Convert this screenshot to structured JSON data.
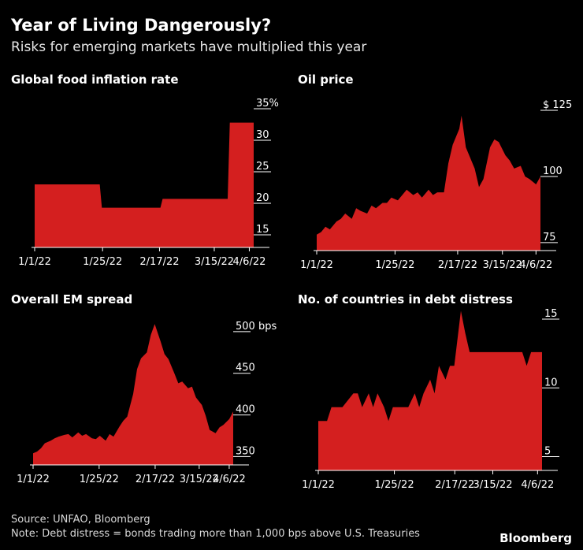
{
  "header": {
    "title": "Year of Living Dangerously?",
    "subtitle": "Risks for emerging markets have multiplied this year"
  },
  "footer": {
    "source": "Source: UNFAO, Bloomberg",
    "note": "Note: Debt distress = bonds trading more than 1,000 bps above U.S. Treasuries",
    "brand": "Bloomberg"
  },
  "colors": {
    "fill": "#d41f1f",
    "background": "#000000",
    "axis": "#ffffff"
  },
  "chart_data": [
    {
      "type": "area",
      "title": "Global food inflation rate",
      "xticks": [
        "1/1/22",
        "1/25/22",
        "2/17/22",
        "3/15/22",
        "4/6/22"
      ],
      "yticks": [
        "15",
        "20",
        "25",
        "30",
        "35%"
      ],
      "ylim": [
        13,
        35
      ],
      "x": [
        "2022-01-01",
        "2022-01-31",
        "2022-02-01",
        "2022-02-28",
        "2022-03-01",
        "2022-03-31",
        "2022-04-01",
        "2022-04-12"
      ],
      "y": [
        23.0,
        23.0,
        19.3,
        19.3,
        20.7,
        20.7,
        32.8,
        32.8
      ]
    },
    {
      "type": "area",
      "title": "Oil price",
      "xticks": [
        "1/1/22",
        "1/25/22",
        "2/17/22",
        "3/15/22",
        "4/6/22"
      ],
      "yticks": [
        "75",
        "100",
        "$ 125"
      ],
      "ylim": [
        72,
        125
      ],
      "x": [
        "2022-01-01",
        "2022-01-03",
        "2022-01-05",
        "2022-01-07",
        "2022-01-10",
        "2022-01-12",
        "2022-01-14",
        "2022-01-17",
        "2022-01-19",
        "2022-01-21",
        "2022-01-24",
        "2022-01-26",
        "2022-01-28",
        "2022-01-31",
        "2022-02-02",
        "2022-02-04",
        "2022-02-07",
        "2022-02-09",
        "2022-02-11",
        "2022-02-14",
        "2022-02-16",
        "2022-02-18",
        "2022-02-21",
        "2022-02-23",
        "2022-02-25",
        "2022-02-28",
        "2022-03-02",
        "2022-03-04",
        "2022-03-07",
        "2022-03-08",
        "2022-03-10",
        "2022-03-14",
        "2022-03-16",
        "2022-03-18",
        "2022-03-21",
        "2022-03-23",
        "2022-03-25",
        "2022-03-28",
        "2022-03-30",
        "2022-04-01",
        "2022-04-04",
        "2022-04-06",
        "2022-04-08",
        "2022-04-11",
        "2022-04-13"
      ],
      "y": [
        78,
        79,
        81,
        80,
        83,
        84,
        86,
        84,
        88,
        87,
        86,
        89,
        88,
        90,
        90,
        92,
        91,
        93,
        95,
        93,
        94,
        92,
        95,
        93,
        94,
        94,
        105,
        112,
        118,
        123,
        111,
        103,
        96,
        99,
        111,
        114,
        113,
        108,
        106,
        103,
        104,
        100,
        99,
        97,
        100
      ]
    },
    {
      "type": "area",
      "title": "Overall EM spread",
      "xticks": [
        "1/1/22",
        "1/25/22",
        "2/17/22",
        "3/15/22",
        "4/6/22"
      ],
      "yticks": [
        "350",
        "400",
        "450",
        "500 bps"
      ],
      "ylim": [
        340,
        515
      ],
      "x": [
        "2022-01-01",
        "2022-01-03",
        "2022-01-05",
        "2022-01-07",
        "2022-01-10",
        "2022-01-12",
        "2022-01-14",
        "2022-01-17",
        "2022-01-19",
        "2022-01-21",
        "2022-01-24",
        "2022-01-26",
        "2022-01-28",
        "2022-01-31",
        "2022-02-02",
        "2022-02-04",
        "2022-02-07",
        "2022-02-09",
        "2022-02-11",
        "2022-02-14",
        "2022-02-16",
        "2022-02-18",
        "2022-02-21",
        "2022-02-23",
        "2022-02-25",
        "2022-02-28",
        "2022-03-02",
        "2022-03-04",
        "2022-03-07",
        "2022-03-09",
        "2022-03-11",
        "2022-03-14",
        "2022-03-16",
        "2022-03-18",
        "2022-03-21",
        "2022-03-23",
        "2022-03-25",
        "2022-03-28",
        "2022-03-30",
        "2022-04-01",
        "2022-04-04",
        "2022-04-06",
        "2022-04-08",
        "2022-04-11",
        "2022-04-13"
      ],
      "y": [
        354,
        356,
        360,
        366,
        369,
        372,
        374,
        376,
        377,
        373,
        379,
        375,
        377,
        372,
        371,
        375,
        369,
        377,
        374,
        386,
        393,
        398,
        425,
        455,
        468,
        475,
        496,
        509,
        488,
        473,
        467,
        450,
        438,
        440,
        432,
        434,
        421,
        412,
        399,
        382,
        378,
        385,
        388,
        395,
        404
      ]
    },
    {
      "type": "area",
      "title": "No. of countries in debt distress",
      "xticks": [
        "1/1/22",
        "1/25/22",
        "2/17/22",
        "3/15/22",
        "4/6/22"
      ],
      "yticks": [
        "5",
        "10",
        "15"
      ],
      "ylim": [
        4,
        15
      ],
      "x": [
        "2022-01-01",
        "2022-01-05",
        "2022-01-07",
        "2022-01-12",
        "2022-01-17",
        "2022-01-19",
        "2022-01-21",
        "2022-01-24",
        "2022-01-26",
        "2022-01-28",
        "2022-01-31",
        "2022-02-02",
        "2022-02-04",
        "2022-02-07",
        "2022-02-09",
        "2022-02-11",
        "2022-02-14",
        "2022-02-16",
        "2022-02-18",
        "2022-02-21",
        "2022-02-23",
        "2022-02-25",
        "2022-02-28",
        "2022-03-02",
        "2022-03-04",
        "2022-03-07",
        "2022-03-09",
        "2022-03-11",
        "2022-03-14",
        "2022-04-04",
        "2022-04-06",
        "2022-04-08",
        "2022-04-13"
      ],
      "y": [
        7.6,
        7.6,
        8.6,
        8.6,
        9.6,
        9.6,
        8.6,
        9.6,
        8.6,
        9.6,
        8.6,
        7.6,
        8.6,
        8.6,
        8.6,
        8.6,
        9.6,
        8.6,
        9.6,
        10.6,
        9.6,
        11.6,
        10.6,
        11.6,
        11.6,
        15.6,
        14.0,
        12.6,
        12.6,
        12.6,
        11.6,
        12.6,
        12.6
      ]
    }
  ]
}
